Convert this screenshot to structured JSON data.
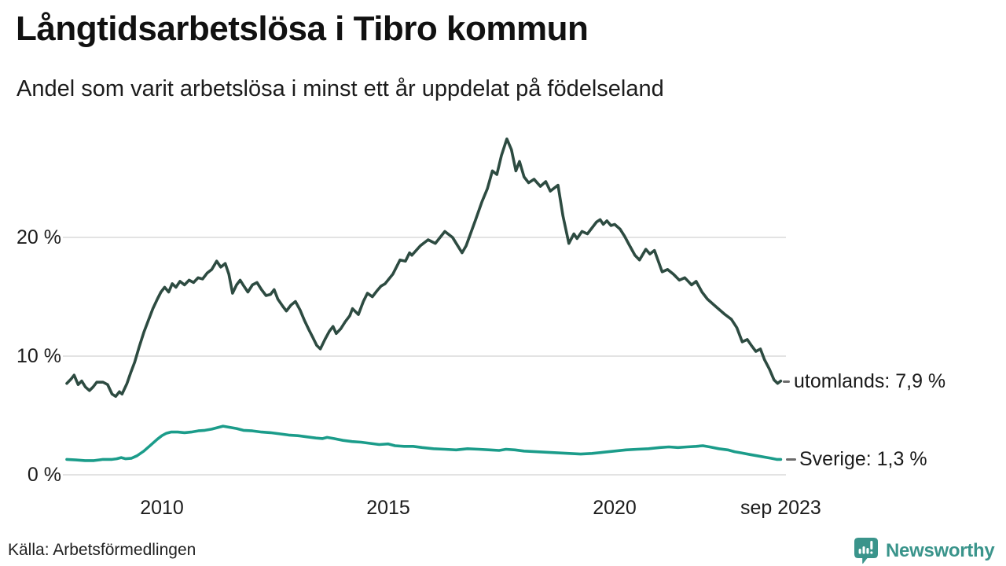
{
  "header": {
    "title": "Långtidsarbetslösa i Tibro kommun",
    "subtitle": "Andel som varit arbetslösa i minst ett år uppdelat på födelseland"
  },
  "footer": {
    "source": "Källa: Arbetsförmedlingen",
    "brand": "Newsworthy",
    "brand_color": "#3a948b"
  },
  "chart_data": {
    "type": "line",
    "title": "Långtidsarbetslösa i Tibro kommun",
    "subtitle": "Andel som varit arbetslösa i minst ett år uppdelat på födelseland",
    "grid": true,
    "grid_color": "#e3e3e3",
    "x_axis": {
      "range": [
        2007.9,
        2023.75
      ],
      "ticks": [
        {
          "value": 2010,
          "label": "2010"
        },
        {
          "value": 2015,
          "label": "2015"
        },
        {
          "value": 2020,
          "label": "2020"
        },
        {
          "value": 2023.67,
          "label": "sep 2023"
        }
      ]
    },
    "y_axis": {
      "unit": "%",
      "range": [
        0,
        30
      ],
      "ticks": [
        {
          "value": 0,
          "label": "0 %"
        },
        {
          "value": 10,
          "label": "10 %"
        },
        {
          "value": 20,
          "label": "20 %"
        }
      ]
    },
    "series": [
      {
        "name": "utomlands",
        "color": "#2d4b41",
        "end_label": "utomlands: 7,9 %",
        "last_value": "7,9 %",
        "points": [
          [
            2007.9,
            7.7
          ],
          [
            2008.0,
            8.1
          ],
          [
            2008.06,
            8.4
          ],
          [
            2008.15,
            7.6
          ],
          [
            2008.23,
            7.9
          ],
          [
            2008.31,
            7.4
          ],
          [
            2008.4,
            7.1
          ],
          [
            2008.48,
            7.4
          ],
          [
            2008.56,
            7.8
          ],
          [
            2008.7,
            7.8
          ],
          [
            2008.8,
            7.6
          ],
          [
            2008.9,
            6.8
          ],
          [
            2008.98,
            6.6
          ],
          [
            2009.06,
            7.0
          ],
          [
            2009.12,
            6.8
          ],
          [
            2009.23,
            7.7
          ],
          [
            2009.31,
            8.6
          ],
          [
            2009.4,
            9.5
          ],
          [
            2009.5,
            10.8
          ],
          [
            2009.6,
            12.0
          ],
          [
            2009.7,
            13.0
          ],
          [
            2009.8,
            14.0
          ],
          [
            2009.9,
            14.8
          ],
          [
            2009.98,
            15.4
          ],
          [
            2010.06,
            15.8
          ],
          [
            2010.15,
            15.4
          ],
          [
            2010.23,
            16.1
          ],
          [
            2010.31,
            15.8
          ],
          [
            2010.4,
            16.3
          ],
          [
            2010.5,
            16.0
          ],
          [
            2010.6,
            16.4
          ],
          [
            2010.7,
            16.2
          ],
          [
            2010.8,
            16.6
          ],
          [
            2010.9,
            16.5
          ],
          [
            2011.0,
            17.0
          ],
          [
            2011.1,
            17.3
          ],
          [
            2011.21,
            18.0
          ],
          [
            2011.3,
            17.5
          ],
          [
            2011.4,
            17.8
          ],
          [
            2011.48,
            16.9
          ],
          [
            2011.56,
            15.3
          ],
          [
            2011.65,
            16.0
          ],
          [
            2011.73,
            16.4
          ],
          [
            2011.81,
            15.9
          ],
          [
            2011.9,
            15.4
          ],
          [
            2012.0,
            16.0
          ],
          [
            2012.1,
            16.2
          ],
          [
            2012.2,
            15.6
          ],
          [
            2012.3,
            15.1
          ],
          [
            2012.4,
            15.2
          ],
          [
            2012.48,
            15.6
          ],
          [
            2012.56,
            14.8
          ],
          [
            2012.67,
            14.2
          ],
          [
            2012.75,
            13.8
          ],
          [
            2012.85,
            14.3
          ],
          [
            2012.95,
            14.6
          ],
          [
            2013.05,
            13.9
          ],
          [
            2013.15,
            13.0
          ],
          [
            2013.25,
            12.2
          ],
          [
            2013.33,
            11.6
          ],
          [
            2013.42,
            10.9
          ],
          [
            2013.5,
            10.6
          ],
          [
            2013.6,
            11.4
          ],
          [
            2013.7,
            12.1
          ],
          [
            2013.78,
            12.5
          ],
          [
            2013.85,
            11.9
          ],
          [
            2013.95,
            12.3
          ],
          [
            2014.05,
            12.9
          ],
          [
            2014.15,
            13.4
          ],
          [
            2014.21,
            14.0
          ],
          [
            2014.34,
            13.5
          ],
          [
            2014.45,
            14.6
          ],
          [
            2014.54,
            15.3
          ],
          [
            2014.65,
            15.0
          ],
          [
            2014.75,
            15.5
          ],
          [
            2014.84,
            15.9
          ],
          [
            2014.93,
            16.1
          ],
          [
            2015.1,
            16.9
          ],
          [
            2015.26,
            18.1
          ],
          [
            2015.38,
            18.0
          ],
          [
            2015.47,
            18.7
          ],
          [
            2015.52,
            18.5
          ],
          [
            2015.71,
            19.3
          ],
          [
            2015.88,
            19.8
          ],
          [
            2016.04,
            19.5
          ],
          [
            2016.25,
            20.5
          ],
          [
            2016.42,
            20.0
          ],
          [
            2016.63,
            18.7
          ],
          [
            2016.72,
            19.3
          ],
          [
            2016.93,
            21.5
          ],
          [
            2017.07,
            23.0
          ],
          [
            2017.19,
            24.1
          ],
          [
            2017.3,
            25.6
          ],
          [
            2017.4,
            25.3
          ],
          [
            2017.5,
            26.9
          ],
          [
            2017.62,
            28.3
          ],
          [
            2017.72,
            27.4
          ],
          [
            2017.82,
            25.6
          ],
          [
            2017.9,
            26.4
          ],
          [
            2018.0,
            25.1
          ],
          [
            2018.1,
            24.6
          ],
          [
            2018.22,
            24.9
          ],
          [
            2018.36,
            24.3
          ],
          [
            2018.48,
            24.7
          ],
          [
            2018.58,
            23.9
          ],
          [
            2018.75,
            24.4
          ],
          [
            2018.86,
            21.8
          ],
          [
            2018.99,
            19.5
          ],
          [
            2019.1,
            20.3
          ],
          [
            2019.17,
            19.9
          ],
          [
            2019.28,
            20.5
          ],
          [
            2019.4,
            20.3
          ],
          [
            2019.6,
            21.3
          ],
          [
            2019.68,
            21.5
          ],
          [
            2019.75,
            21.1
          ],
          [
            2019.83,
            21.4
          ],
          [
            2019.92,
            21.0
          ],
          [
            2020.0,
            21.1
          ],
          [
            2020.12,
            20.7
          ],
          [
            2020.22,
            20.1
          ],
          [
            2020.32,
            19.4
          ],
          [
            2020.45,
            18.5
          ],
          [
            2020.55,
            18.1
          ],
          [
            2020.69,
            19.0
          ],
          [
            2020.78,
            18.6
          ],
          [
            2020.88,
            18.9
          ],
          [
            2021.05,
            17.1
          ],
          [
            2021.17,
            17.3
          ],
          [
            2021.3,
            16.9
          ],
          [
            2021.43,
            16.4
          ],
          [
            2021.55,
            16.6
          ],
          [
            2021.7,
            16.0
          ],
          [
            2021.8,
            16.3
          ],
          [
            2021.93,
            15.4
          ],
          [
            2022.05,
            14.8
          ],
          [
            2022.23,
            14.2
          ],
          [
            2022.44,
            13.5
          ],
          [
            2022.58,
            13.1
          ],
          [
            2022.7,
            12.4
          ],
          [
            2022.82,
            11.2
          ],
          [
            2022.93,
            11.4
          ],
          [
            2023.02,
            10.9
          ],
          [
            2023.12,
            10.4
          ],
          [
            2023.22,
            10.6
          ],
          [
            2023.31,
            9.7
          ],
          [
            2023.42,
            8.9
          ],
          [
            2023.52,
            8.0
          ],
          [
            2023.6,
            7.7
          ],
          [
            2023.67,
            7.9
          ]
        ]
      },
      {
        "name": "Sverige",
        "color": "#1b9c8a",
        "end_label": "Sverige: 1,3 %",
        "last_value": "1,3 %",
        "points": [
          [
            2007.9,
            1.3
          ],
          [
            2008.1,
            1.25
          ],
          [
            2008.3,
            1.2
          ],
          [
            2008.5,
            1.2
          ],
          [
            2008.7,
            1.3
          ],
          [
            2008.9,
            1.3
          ],
          [
            2009.0,
            1.35
          ],
          [
            2009.1,
            1.45
          ],
          [
            2009.2,
            1.35
          ],
          [
            2009.33,
            1.4
          ],
          [
            2009.45,
            1.6
          ],
          [
            2009.6,
            2.0
          ],
          [
            2009.75,
            2.5
          ],
          [
            2009.9,
            3.0
          ],
          [
            2010.0,
            3.3
          ],
          [
            2010.1,
            3.5
          ],
          [
            2010.2,
            3.6
          ],
          [
            2010.35,
            3.6
          ],
          [
            2010.5,
            3.55
          ],
          [
            2010.65,
            3.6
          ],
          [
            2010.8,
            3.7
          ],
          [
            2010.95,
            3.75
          ],
          [
            2011.1,
            3.85
          ],
          [
            2011.25,
            4.0
          ],
          [
            2011.35,
            4.1
          ],
          [
            2011.5,
            4.0
          ],
          [
            2011.65,
            3.9
          ],
          [
            2011.8,
            3.75
          ],
          [
            2012.0,
            3.7
          ],
          [
            2012.2,
            3.6
          ],
          [
            2012.4,
            3.55
          ],
          [
            2012.6,
            3.45
          ],
          [
            2012.8,
            3.35
          ],
          [
            2013.0,
            3.3
          ],
          [
            2013.2,
            3.2
          ],
          [
            2013.4,
            3.1
          ],
          [
            2013.55,
            3.05
          ],
          [
            2013.65,
            3.15
          ],
          [
            2013.8,
            3.05
          ],
          [
            2014.0,
            2.9
          ],
          [
            2014.2,
            2.8
          ],
          [
            2014.4,
            2.75
          ],
          [
            2014.6,
            2.65
          ],
          [
            2014.8,
            2.55
          ],
          [
            2015.0,
            2.6
          ],
          [
            2015.15,
            2.45
          ],
          [
            2015.35,
            2.4
          ],
          [
            2015.55,
            2.4
          ],
          [
            2015.75,
            2.3
          ],
          [
            2016.0,
            2.2
          ],
          [
            2016.25,
            2.15
          ],
          [
            2016.5,
            2.1
          ],
          [
            2016.75,
            2.2
          ],
          [
            2017.0,
            2.15
          ],
          [
            2017.25,
            2.1
          ],
          [
            2017.45,
            2.05
          ],
          [
            2017.6,
            2.15
          ],
          [
            2017.8,
            2.1
          ],
          [
            2018.0,
            2.0
          ],
          [
            2018.25,
            1.95
          ],
          [
            2018.5,
            1.9
          ],
          [
            2018.75,
            1.85
          ],
          [
            2019.0,
            1.8
          ],
          [
            2019.25,
            1.75
          ],
          [
            2019.5,
            1.8
          ],
          [
            2019.75,
            1.9
          ],
          [
            2020.0,
            2.0
          ],
          [
            2020.25,
            2.1
          ],
          [
            2020.5,
            2.15
          ],
          [
            2020.75,
            2.2
          ],
          [
            2021.0,
            2.3
          ],
          [
            2021.2,
            2.35
          ],
          [
            2021.4,
            2.3
          ],
          [
            2021.6,
            2.35
          ],
          [
            2021.8,
            2.4
          ],
          [
            2021.95,
            2.45
          ],
          [
            2022.1,
            2.35
          ],
          [
            2022.3,
            2.2
          ],
          [
            2022.5,
            2.1
          ],
          [
            2022.65,
            1.95
          ],
          [
            2022.8,
            1.85
          ],
          [
            2023.0,
            1.7
          ],
          [
            2023.15,
            1.6
          ],
          [
            2023.3,
            1.5
          ],
          [
            2023.45,
            1.4
          ],
          [
            2023.58,
            1.3
          ],
          [
            2023.67,
            1.3
          ]
        ]
      }
    ]
  }
}
